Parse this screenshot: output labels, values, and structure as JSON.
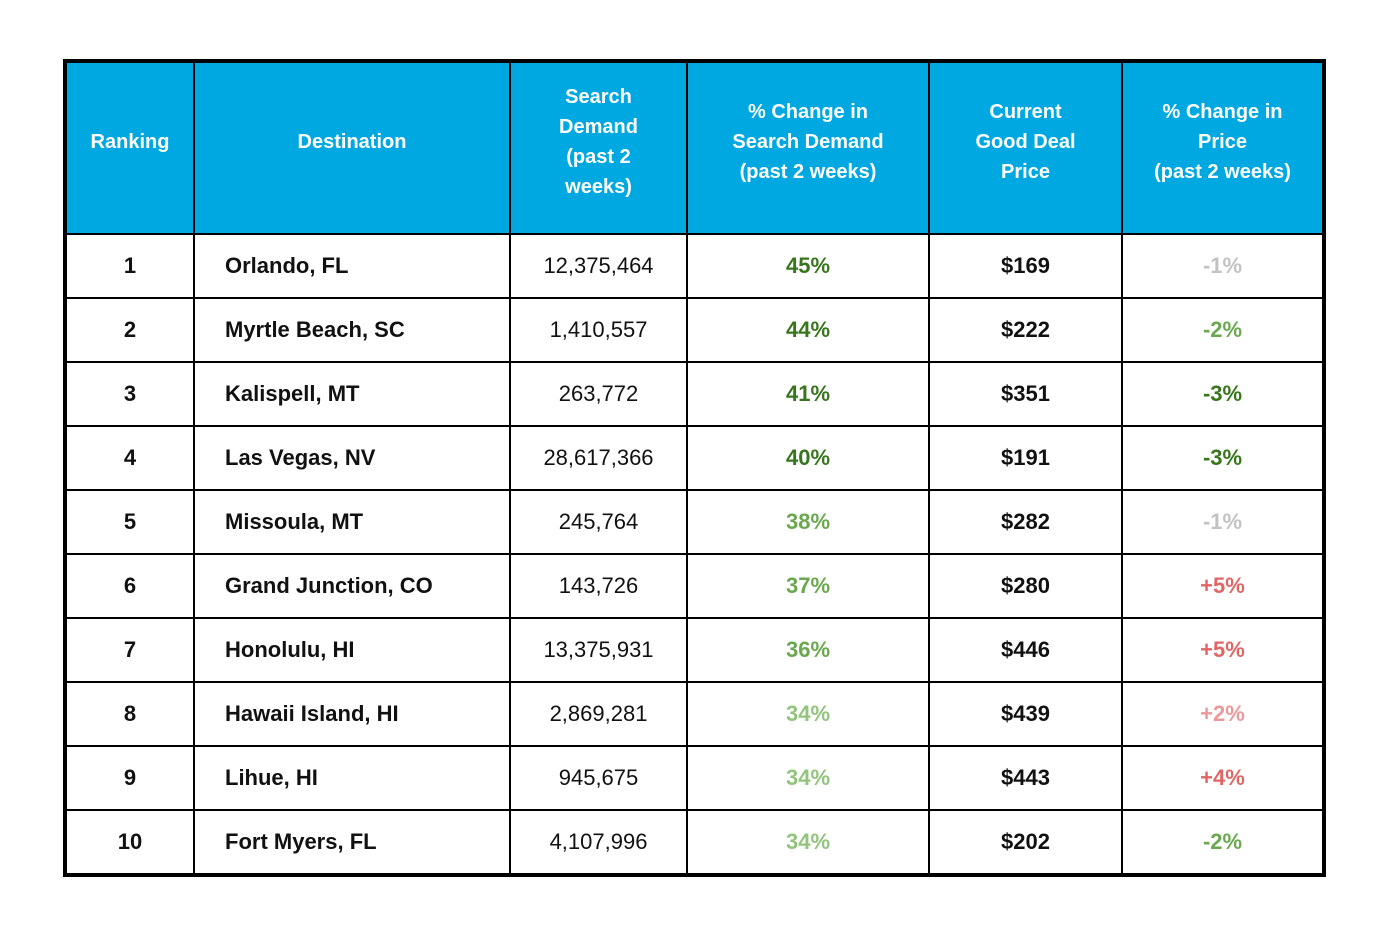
{
  "colors": {
    "header_bg": "#00A8E1",
    "header_text": "#FFFFFF",
    "border": "#000000",
    "text": "#111111",
    "green_dark": "#38761D",
    "green_mid": "#6AA84F",
    "green_light": "#93C47D",
    "gray": "#C2C2C2",
    "red": "#E06666",
    "red_light": "#EA9999"
  },
  "chart_data": {
    "type": "table",
    "columns": [
      {
        "label": "Ranking",
        "display": "Ranking"
      },
      {
        "label": "Destination",
        "display": "Destination"
      },
      {
        "label": "Search Demand (past 2 weeks)",
        "display": "Search\nDemand\n(past 2\nweeks)"
      },
      {
        "label": "% Change in Search Demand (past 2 weeks)",
        "display": "% Change in\nSearch Demand\n(past 2 weeks)"
      },
      {
        "label": "Current Good Deal Price",
        "display": "Current\nGood Deal\nPrice"
      },
      {
        "label": "% Change in Price (past 2 weeks)",
        "display": "% Change in\nPrice\n(past 2 weeks)"
      }
    ],
    "rows": [
      {
        "ranking": "1",
        "destination": "Orlando, FL",
        "search_demand": "12,375,464",
        "search_demand_change": "45%",
        "search_demand_change_color": "green_dark",
        "good_deal_price": "$169",
        "price_change": "-1%",
        "price_change_color": "gray"
      },
      {
        "ranking": "2",
        "destination": "Myrtle Beach, SC",
        "search_demand": "1,410,557",
        "search_demand_change": "44%",
        "search_demand_change_color": "green_dark",
        "good_deal_price": "$222",
        "price_change": "-2%",
        "price_change_color": "green_mid"
      },
      {
        "ranking": "3",
        "destination": "Kalispell, MT",
        "search_demand": "263,772",
        "search_demand_change": "41%",
        "search_demand_change_color": "green_dark",
        "good_deal_price": "$351",
        "price_change": "-3%",
        "price_change_color": "green_dark"
      },
      {
        "ranking": "4",
        "destination": "Las Vegas, NV",
        "search_demand": "28,617,366",
        "search_demand_change": "40%",
        "search_demand_change_color": "green_dark",
        "good_deal_price": "$191",
        "price_change": "-3%",
        "price_change_color": "green_dark"
      },
      {
        "ranking": "5",
        "destination": "Missoula, MT",
        "search_demand": "245,764",
        "search_demand_change": "38%",
        "search_demand_change_color": "green_mid",
        "good_deal_price": "$282",
        "price_change": "-1%",
        "price_change_color": "gray"
      },
      {
        "ranking": "6",
        "destination": "Grand Junction, CO",
        "search_demand": "143,726",
        "search_demand_change": "37%",
        "search_demand_change_color": "green_mid",
        "good_deal_price": "$280",
        "price_change": "+5%",
        "price_change_color": "red"
      },
      {
        "ranking": "7",
        "destination": "Honolulu, HI",
        "search_demand": "13,375,931",
        "search_demand_change": "36%",
        "search_demand_change_color": "green_mid",
        "good_deal_price": "$446",
        "price_change": "+5%",
        "price_change_color": "red"
      },
      {
        "ranking": "8",
        "destination": "Hawaii Island, HI",
        "search_demand": "2,869,281",
        "search_demand_change": "34%",
        "search_demand_change_color": "green_light",
        "good_deal_price": "$439",
        "price_change": "+2%",
        "price_change_color": "red_light"
      },
      {
        "ranking": "9",
        "destination": "Lihue, HI",
        "search_demand": "945,675",
        "search_demand_change": "34%",
        "search_demand_change_color": "green_light",
        "good_deal_price": "$443",
        "price_change": "+4%",
        "price_change_color": "red"
      },
      {
        "ranking": "10",
        "destination": "Fort Myers, FL",
        "search_demand": "4,107,996",
        "search_demand_change": "34%",
        "search_demand_change_color": "green_light",
        "good_deal_price": "$202",
        "price_change": "-2%",
        "price_change_color": "green_mid"
      }
    ]
  }
}
